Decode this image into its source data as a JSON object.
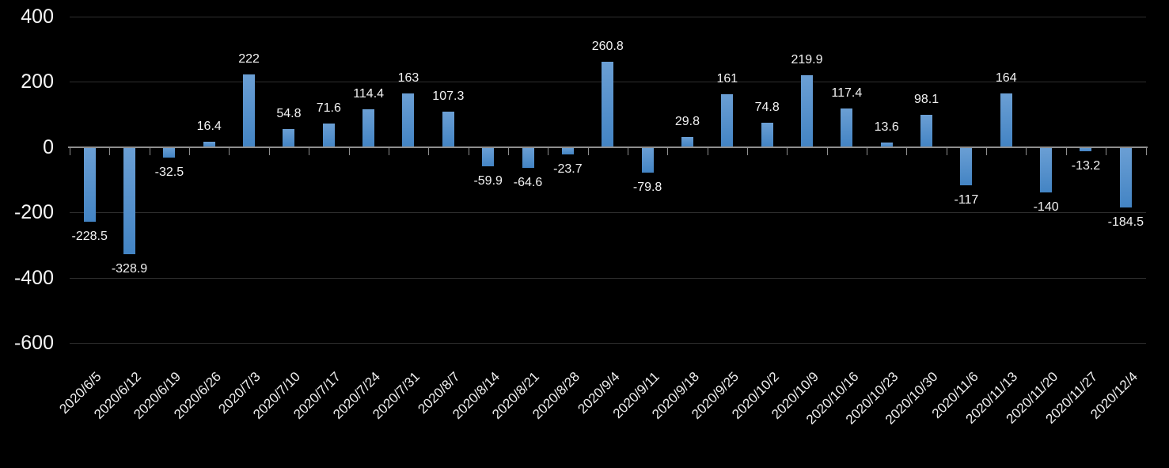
{
  "chart_data": {
    "type": "bar",
    "title": "",
    "categories": [
      "2020/6/5",
      "2020/6/12",
      "2020/6/19",
      "2020/6/26",
      "2020/7/3",
      "2020/7/10",
      "2020/7/17",
      "2020/7/24",
      "2020/7/31",
      "2020/8/7",
      "2020/8/14",
      "2020/8/21",
      "2020/8/28",
      "2020/9/4",
      "2020/9/11",
      "2020/9/18",
      "2020/9/25",
      "2020/10/2",
      "2020/10/9",
      "2020/10/16",
      "2020/10/23",
      "2020/10/30",
      "2020/11/6",
      "2020/11/13",
      "2020/11/20",
      "2020/11/27",
      "2020/12/4"
    ],
    "values": [
      -228.5,
      -328.9,
      -32.5,
      16.4,
      222,
      54.8,
      71.6,
      114.4,
      163,
      107.3,
      -59.9,
      -64.6,
      -23.7,
      260.8,
      -79.8,
      29.8,
      161,
      74.8,
      219.9,
      117.4,
      13.6,
      98.1,
      -117,
      164,
      -140,
      -13.2,
      -184.5
    ],
    "data_labels": [
      "-228.5",
      "-328.9",
      "-32.5",
      "16.4",
      "222",
      "54.8",
      "71.6",
      "114.4",
      "163",
      "107.3",
      "-59.9",
      "-64.6",
      "-23.7",
      "260.8",
      "-79.8",
      "29.8",
      "161",
      "74.8",
      "219.9",
      "117.4",
      "13.6",
      "98.1",
      "-117",
      "164",
      "-140",
      "-13.2",
      "-184.5"
    ],
    "xlabel": "",
    "ylabel": "",
    "y_axis": {
      "ticks": [
        400,
        200,
        0,
        -200,
        -400,
        -600
      ],
      "tick_labels": [
        "400",
        "200",
        "0",
        "-200",
        "-400",
        "-600"
      ],
      "ylim": [
        -600,
        400
      ]
    },
    "x_axis": {
      "label_rotation_deg": 45
    },
    "legend": "none",
    "grid": "horizontal",
    "data_label_position": "outside-end",
    "colors": {
      "background": "#000000",
      "bar_gradient_top": "#6b9fd4",
      "bar_gradient_bottom": "#4384c4",
      "gridline": "#2e2e2e",
      "axis_line": "#8e8e8e",
      "text": "#f2f2f2"
    }
  }
}
